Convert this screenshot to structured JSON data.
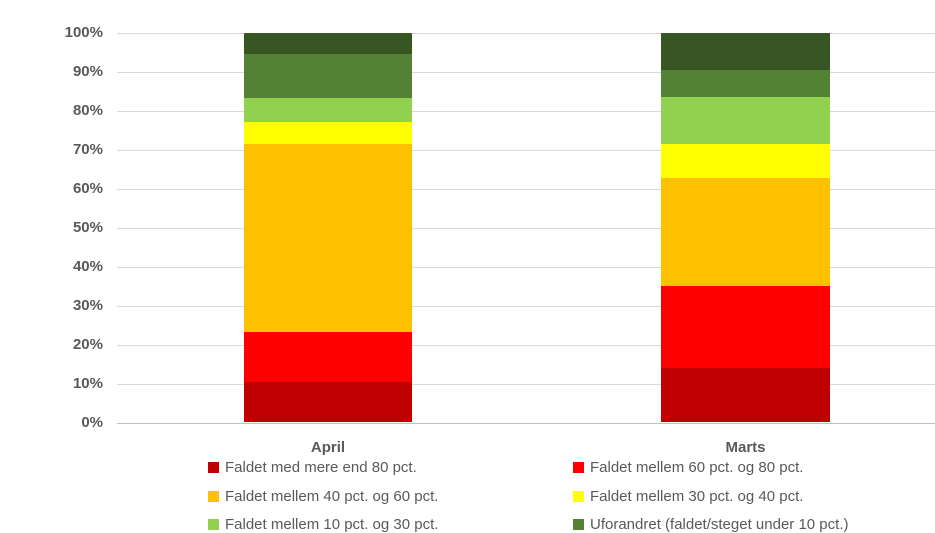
{
  "colors": {
    "text": "#595959",
    "gridline": "#d9d9d9",
    "axis_line": "#c0c0c0",
    "dark_red": "#c00000",
    "red": "#ff0000",
    "orange": "#ffc000",
    "yellow": "#ffff00",
    "light_green": "#92d050",
    "green": "#548235",
    "dark_green": "#375623"
  },
  "chart_data": {
    "type": "bar",
    "stacked": true,
    "unit": "%",
    "categories": [
      "April",
      "Marts"
    ],
    "series": [
      {
        "name": "Faldet med mere end 80 pct.",
        "color": "#c00000",
        "values": [
          10.3,
          13.8
        ]
      },
      {
        "name": "Faldet mellem 60 pct. og 80 pct.",
        "color": "#ff0000",
        "values": [
          12.8,
          21.1
        ]
      },
      {
        "name": "Faldet mellem 40 pct. og 60 pct.",
        "color": "#ffc000",
        "values": [
          48.3,
          27.7
        ]
      },
      {
        "name": "Faldet mellem 30 pct. og 40 pct.",
        "color": "#ffff00",
        "values": [
          5.6,
          8.9
        ]
      },
      {
        "name": "Faldet mellem 10 pct. og 30 pct.",
        "color": "#92d050",
        "values": [
          6.4,
          12.1
        ]
      },
      {
        "name": "Uforandret (faldet/steget under 10 pct.)",
        "color": "#548235",
        "values": [
          11.1,
          6.9
        ]
      },
      {
        "name": "",
        "color": "#375623",
        "values": [
          5.5,
          9.5
        ]
      }
    ],
    "xlabel": "",
    "ylabel": "",
    "ylim": [
      0,
      100
    ],
    "y_ticks": [
      "100%",
      "90%",
      "80%",
      "70%",
      "60%",
      "50%",
      "40%",
      "30%",
      "20%",
      "10%",
      "0%"
    ],
    "grid": true,
    "legend_position": "bottom"
  },
  "legend": {
    "items": [
      {
        "label": "Faldet med mere end 80 pct.",
        "color": "#c00000"
      },
      {
        "label": "Faldet mellem 60 pct. og 80 pct.",
        "color": "#ff0000"
      },
      {
        "label": "Faldet mellem 40 pct. og 60 pct.",
        "color": "#ffc000"
      },
      {
        "label": "Faldet mellem 30 pct. og 40 pct.",
        "color": "#ffff00"
      },
      {
        "label": "Faldet mellem 10 pct. og 30 pct.",
        "color": "#92d050"
      },
      {
        "label": "Uforandret (faldet/steget under 10 pct.)",
        "color": "#548235"
      }
    ]
  }
}
